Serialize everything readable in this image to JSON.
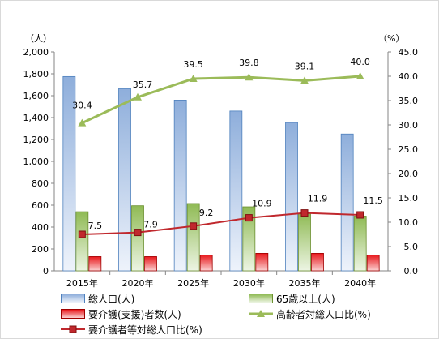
{
  "chart_data": {
    "type": "bar",
    "categories": [
      "2015年",
      "2020年",
      "2025年",
      "2030年",
      "2035年",
      "2040年"
    ],
    "y_left_unit": "（人）",
    "y_right_unit": "（%）",
    "y_left_lim": [
      0,
      2000
    ],
    "y_left_ticks": [
      "0",
      "200",
      "400",
      "600",
      "800",
      "1,000",
      "1,200",
      "1,400",
      "1,600",
      "1,800",
      "2,000"
    ],
    "y_right_lim": [
      0,
      45
    ],
    "y_right_ticks": [
      "0.0",
      "5.0",
      "10.0",
      "15.0",
      "20.0",
      "25.0",
      "30.0",
      "35.0",
      "40.0",
      "45.0"
    ],
    "grid": false,
    "legend_position": "bottom",
    "bar_series": [
      {
        "name": "総人口(人)",
        "values": [
          1775,
          1665,
          1560,
          1460,
          1355,
          1250
        ],
        "color": "#95b3d7"
      },
      {
        "name": "65歳以上(人)",
        "values": [
          540,
          595,
          615,
          585,
          525,
          500
        ],
        "color": "#9bbb59"
      },
      {
        "name": "要介護(支援)者数(人)",
        "values": [
          130,
          130,
          145,
          160,
          160,
          145
        ],
        "color": "#e01010"
      }
    ],
    "line_series": [
      {
        "name": "高齢者対総人口比(%)",
        "values": [
          30.4,
          35.7,
          39.5,
          39.8,
          39.1,
          40.0
        ],
        "labels": [
          "30.4",
          "35.7",
          "39.5",
          "39.8",
          "39.1",
          "40.0"
        ],
        "color": "#9bbb59",
        "marker": "triangle"
      },
      {
        "name": "要介護者等対総人口比(%)",
        "values": [
          7.5,
          7.9,
          9.2,
          10.9,
          11.9,
          11.5
        ],
        "labels": [
          "7.5",
          "7.9",
          "9.2",
          "10.9",
          "11.9",
          "11.5"
        ],
        "color": "#c0282d",
        "marker": "square"
      }
    ]
  }
}
